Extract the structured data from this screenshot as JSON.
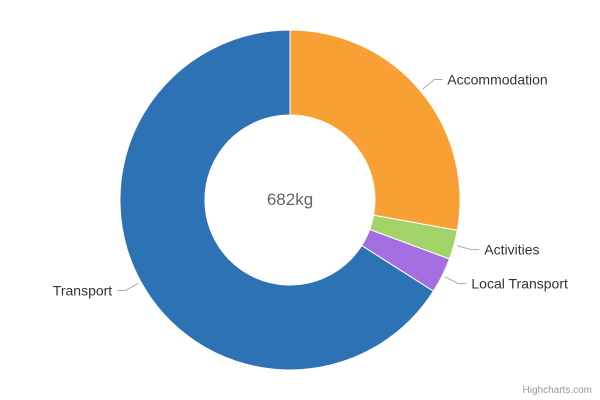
{
  "chart_data": {
    "type": "pie",
    "subtype": "donut",
    "title": "",
    "center_label": "682kg",
    "total": 682,
    "inner_radius_ratio": 0.5,
    "data_labels": true,
    "legend_position": "none",
    "slices": [
      {
        "label": "Accommodation",
        "value": 190,
        "color": "#f9a035"
      },
      {
        "label": "Activities",
        "value": 19,
        "color": "#a2d368"
      },
      {
        "label": "Local Transport",
        "value": 23,
        "color": "#a36ee0"
      },
      {
        "label": "Transport",
        "value": 450,
        "color": "#2d72b5"
      }
    ]
  },
  "credit": "Highcharts.com",
  "colors": {
    "slice_border": "#ffffff",
    "connector": "#aaaaaa",
    "label_text": "#333333",
    "center_label_text": "#666666",
    "credit_text": "#999999"
  }
}
